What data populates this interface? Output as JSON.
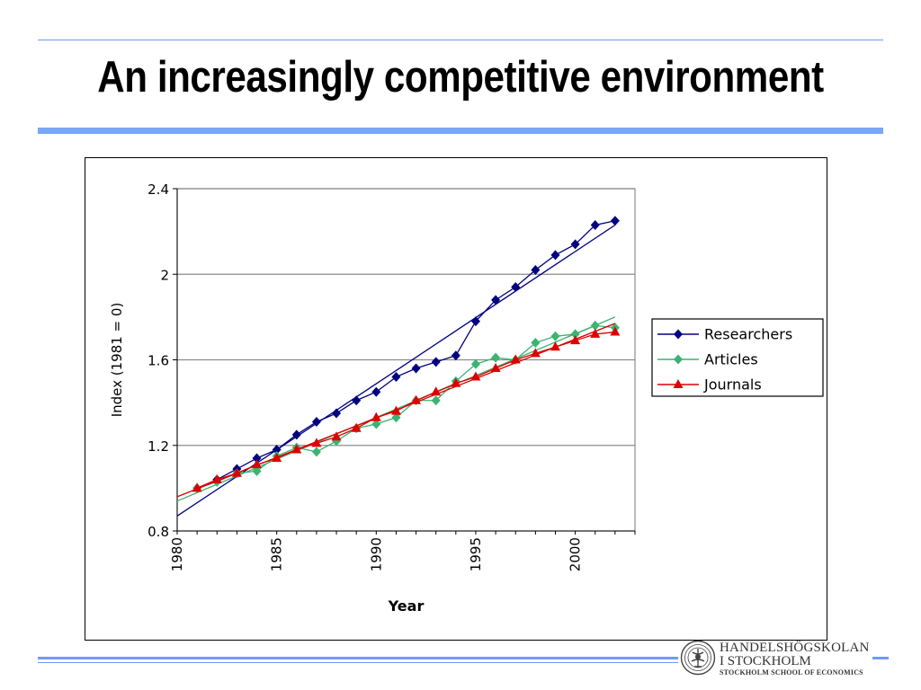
{
  "slide": {
    "title": "An increasingly competitive environment",
    "logo": {
      "line1": "HANDELSHÖGSKOLAN",
      "line2": "I STOCKHOLM",
      "line3": "STOCKHOLM SCHOOL OF ECONOMICS"
    }
  },
  "colors": {
    "accent_rule": "#7aa6f7",
    "researchers": "#000080",
    "articles": "#3cb371",
    "journals": "#dd0000"
  },
  "chart_data": {
    "type": "line",
    "title": "",
    "xlabel": "Year",
    "ylabel": "Index (1981 = 0)",
    "xlim": [
      1980,
      2003
    ],
    "ylim": [
      0.8,
      2.4
    ],
    "x_ticks": [
      1980,
      1985,
      1990,
      1995,
      2000
    ],
    "y_ticks": [
      0.8,
      1.2,
      1.6,
      2,
      2.4
    ],
    "y_tick_labels": [
      "0.8",
      "1.2",
      "1.6",
      "2",
      "2.4"
    ],
    "grid": "horizontal",
    "legend": "right",
    "x": [
      1981,
      1982,
      1983,
      1984,
      1985,
      1986,
      1987,
      1988,
      1989,
      1990,
      1991,
      1992,
      1993,
      1994,
      1995,
      1996,
      1997,
      1998,
      1999,
      2000,
      2001,
      2002
    ],
    "series": [
      {
        "name": "Researchers",
        "marker": "diamond",
        "color": "#000080",
        "values": [
          1.0,
          1.04,
          1.09,
          1.14,
          1.18,
          1.25,
          1.31,
          1.35,
          1.41,
          1.45,
          1.52,
          1.56,
          1.59,
          1.62,
          1.78,
          1.88,
          1.94,
          2.02,
          2.09,
          2.14,
          2.23,
          2.25
        ],
        "trend": [
          [
            1980,
            0.87
          ],
          [
            2002,
            2.23
          ]
        ]
      },
      {
        "name": "Articles",
        "marker": "diamond",
        "color": "#3cb371",
        "values": [
          1.0,
          1.03,
          1.07,
          1.08,
          1.15,
          1.19,
          1.17,
          1.22,
          1.28,
          1.3,
          1.33,
          1.41,
          1.41,
          1.5,
          1.58,
          1.61,
          1.6,
          1.68,
          1.71,
          1.72,
          1.76,
          1.75
        ],
        "trend": [
          [
            1980,
            0.94
          ],
          [
            2002,
            1.8
          ]
        ]
      },
      {
        "name": "Journals",
        "marker": "triangle",
        "color": "#dd0000",
        "values": [
          1.0,
          1.04,
          1.07,
          1.11,
          1.14,
          1.18,
          1.21,
          1.24,
          1.28,
          1.33,
          1.36,
          1.41,
          1.45,
          1.49,
          1.52,
          1.56,
          1.6,
          1.63,
          1.66,
          1.69,
          1.72,
          1.73
        ],
        "trend": [
          [
            1980,
            0.96
          ],
          [
            2002,
            1.77
          ]
        ]
      }
    ]
  }
}
